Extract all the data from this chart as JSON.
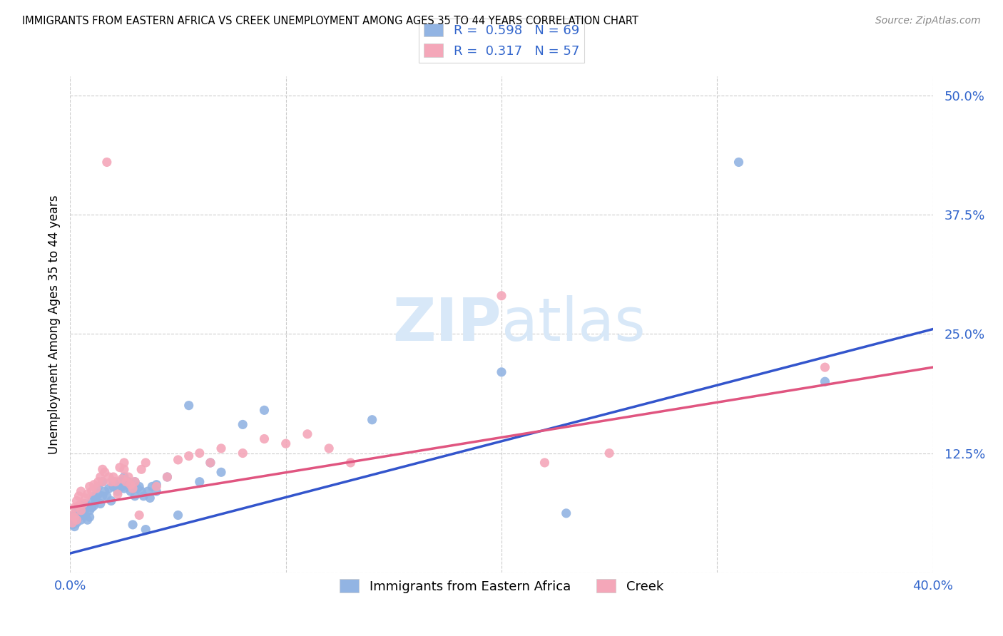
{
  "title": "IMMIGRANTS FROM EASTERN AFRICA VS CREEK UNEMPLOYMENT AMONG AGES 35 TO 44 YEARS CORRELATION CHART",
  "source": "Source: ZipAtlas.com",
  "ylabel": "Unemployment Among Ages 35 to 44 years",
  "legend_labels": [
    "Immigrants from Eastern Africa",
    "Creek"
  ],
  "legend_r": [
    0.598,
    0.317
  ],
  "legend_n": [
    69,
    57
  ],
  "blue_color": "#92B4E3",
  "pink_color": "#F4A7B9",
  "blue_line_color": "#3355CC",
  "pink_line_color": "#E05580",
  "blue_scatter": [
    [
      0.001,
      0.05
    ],
    [
      0.001,
      0.055
    ],
    [
      0.002,
      0.048
    ],
    [
      0.002,
      0.06
    ],
    [
      0.003,
      0.052
    ],
    [
      0.003,
      0.065
    ],
    [
      0.004,
      0.058
    ],
    [
      0.004,
      0.068
    ],
    [
      0.005,
      0.055
    ],
    [
      0.005,
      0.06
    ],
    [
      0.006,
      0.062
    ],
    [
      0.006,
      0.07
    ],
    [
      0.007,
      0.06
    ],
    [
      0.007,
      0.072
    ],
    [
      0.008,
      0.055
    ],
    [
      0.008,
      0.068
    ],
    [
      0.009,
      0.058
    ],
    [
      0.009,
      0.065
    ],
    [
      0.01,
      0.068
    ],
    [
      0.01,
      0.075
    ],
    [
      0.011,
      0.07
    ],
    [
      0.011,
      0.08
    ],
    [
      0.012,
      0.075
    ],
    [
      0.012,
      0.078
    ],
    [
      0.013,
      0.082
    ],
    [
      0.013,
      0.09
    ],
    [
      0.014,
      0.072
    ],
    [
      0.015,
      0.08
    ],
    [
      0.015,
      0.095
    ],
    [
      0.016,
      0.085
    ],
    [
      0.017,
      0.08
    ],
    [
      0.018,
      0.088
    ],
    [
      0.019,
      0.075
    ],
    [
      0.02,
      0.09
    ],
    [
      0.02,
      0.095
    ],
    [
      0.021,
      0.092
    ],
    [
      0.022,
      0.085
    ],
    [
      0.023,
      0.095
    ],
    [
      0.024,
      0.09
    ],
    [
      0.025,
      0.088
    ],
    [
      0.025,
      0.1
    ],
    [
      0.026,
      0.092
    ],
    [
      0.027,
      0.095
    ],
    [
      0.028,
      0.085
    ],
    [
      0.029,
      0.05
    ],
    [
      0.03,
      0.08
    ],
    [
      0.03,
      0.095
    ],
    [
      0.031,
      0.088
    ],
    [
      0.032,
      0.09
    ],
    [
      0.033,
      0.085
    ],
    [
      0.034,
      0.08
    ],
    [
      0.035,
      0.045
    ],
    [
      0.036,
      0.085
    ],
    [
      0.037,
      0.078
    ],
    [
      0.038,
      0.09
    ],
    [
      0.04,
      0.085
    ],
    [
      0.04,
      0.092
    ],
    [
      0.045,
      0.1
    ],
    [
      0.05,
      0.06
    ],
    [
      0.055,
      0.175
    ],
    [
      0.06,
      0.095
    ],
    [
      0.065,
      0.115
    ],
    [
      0.07,
      0.105
    ],
    [
      0.08,
      0.155
    ],
    [
      0.09,
      0.17
    ],
    [
      0.14,
      0.16
    ],
    [
      0.2,
      0.21
    ],
    [
      0.23,
      0.062
    ],
    [
      0.31,
      0.43
    ],
    [
      0.35,
      0.2
    ]
  ],
  "pink_scatter": [
    [
      0.001,
      0.052
    ],
    [
      0.001,
      0.06
    ],
    [
      0.002,
      0.058
    ],
    [
      0.002,
      0.068
    ],
    [
      0.003,
      0.055
    ],
    [
      0.003,
      0.075
    ],
    [
      0.004,
      0.07
    ],
    [
      0.004,
      0.08
    ],
    [
      0.005,
      0.065
    ],
    [
      0.005,
      0.085
    ],
    [
      0.006,
      0.072
    ],
    [
      0.007,
      0.078
    ],
    [
      0.008,
      0.082
    ],
    [
      0.009,
      0.09
    ],
    [
      0.01,
      0.085
    ],
    [
      0.011,
      0.092
    ],
    [
      0.012,
      0.088
    ],
    [
      0.013,
      0.095
    ],
    [
      0.014,
      0.1
    ],
    [
      0.015,
      0.095
    ],
    [
      0.015,
      0.108
    ],
    [
      0.016,
      0.105
    ],
    [
      0.017,
      0.43
    ],
    [
      0.018,
      0.1
    ],
    [
      0.019,
      0.095
    ],
    [
      0.02,
      0.1
    ],
    [
      0.021,
      0.095
    ],
    [
      0.022,
      0.082
    ],
    [
      0.023,
      0.11
    ],
    [
      0.024,
      0.098
    ],
    [
      0.025,
      0.108
    ],
    [
      0.025,
      0.115
    ],
    [
      0.026,
      0.095
    ],
    [
      0.027,
      0.1
    ],
    [
      0.028,
      0.092
    ],
    [
      0.029,
      0.088
    ],
    [
      0.03,
      0.095
    ],
    [
      0.032,
      0.06
    ],
    [
      0.033,
      0.108
    ],
    [
      0.035,
      0.115
    ],
    [
      0.04,
      0.09
    ],
    [
      0.045,
      0.1
    ],
    [
      0.05,
      0.118
    ],
    [
      0.055,
      0.122
    ],
    [
      0.06,
      0.125
    ],
    [
      0.065,
      0.115
    ],
    [
      0.07,
      0.13
    ],
    [
      0.08,
      0.125
    ],
    [
      0.09,
      0.14
    ],
    [
      0.1,
      0.135
    ],
    [
      0.11,
      0.145
    ],
    [
      0.12,
      0.13
    ],
    [
      0.13,
      0.115
    ],
    [
      0.2,
      0.29
    ],
    [
      0.22,
      0.115
    ],
    [
      0.25,
      0.125
    ],
    [
      0.35,
      0.215
    ]
  ],
  "blue_line": [
    0.0,
    0.4,
    0.02,
    0.255
  ],
  "pink_line": [
    0.0,
    0.4,
    0.068,
    0.215
  ],
  "xlim": [
    0.0,
    0.4
  ],
  "ylim": [
    0.0,
    0.52
  ],
  "yticks": [
    0.0,
    0.125,
    0.25,
    0.375,
    0.5
  ],
  "ytick_labels": [
    "",
    "12.5%",
    "25.0%",
    "37.5%",
    "50.0%"
  ],
  "xticks": [
    0.0,
    0.1,
    0.2,
    0.3,
    0.4
  ],
  "xtick_labels": [
    "0.0%",
    "",
    "",
    "",
    "40.0%"
  ],
  "watermark_zip": "ZIP",
  "watermark_atlas": "atlas",
  "watermark_color": "#d8e8f8",
  "background_color": "#ffffff",
  "grid_color": "#cccccc"
}
